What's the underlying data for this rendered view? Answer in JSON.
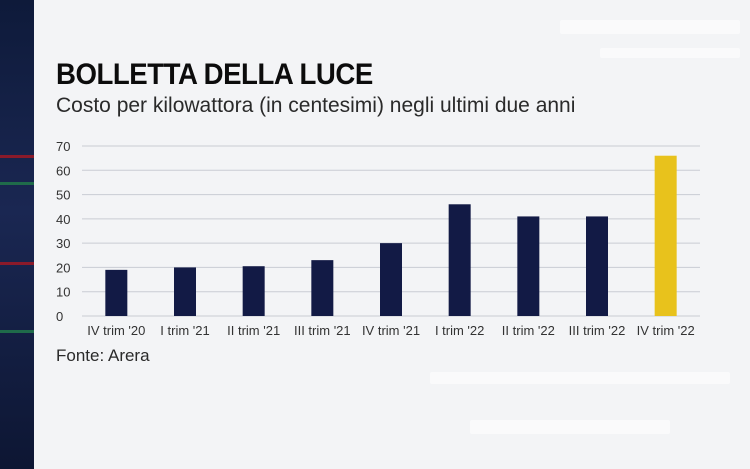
{
  "title": "BOLLETTA DELLA LUCE",
  "subtitle": "Costo per kilowattora (in centesimi) negli ultimi due anni",
  "source": "Fonte: Arera",
  "colors": {
    "bar": "#121a45",
    "highlight": "#e8c21c",
    "background": "#f3f4f6",
    "strip": "#1a2752"
  },
  "chart_data": {
    "type": "bar",
    "categories": [
      "IV trim '20",
      "I trim '21",
      "II trim '21",
      "III trim '21",
      "IV trim '21",
      "I trim '22",
      "II trim '22",
      "III trim '22",
      "IV trim '22"
    ],
    "values": [
      19,
      20,
      20.5,
      23,
      30,
      46,
      41,
      41,
      66
    ],
    "highlight_index": 8,
    "yticks": [
      0,
      10,
      20,
      30,
      40,
      50,
      60,
      70
    ],
    "ylim": [
      0,
      70
    ],
    "grid": true
  }
}
